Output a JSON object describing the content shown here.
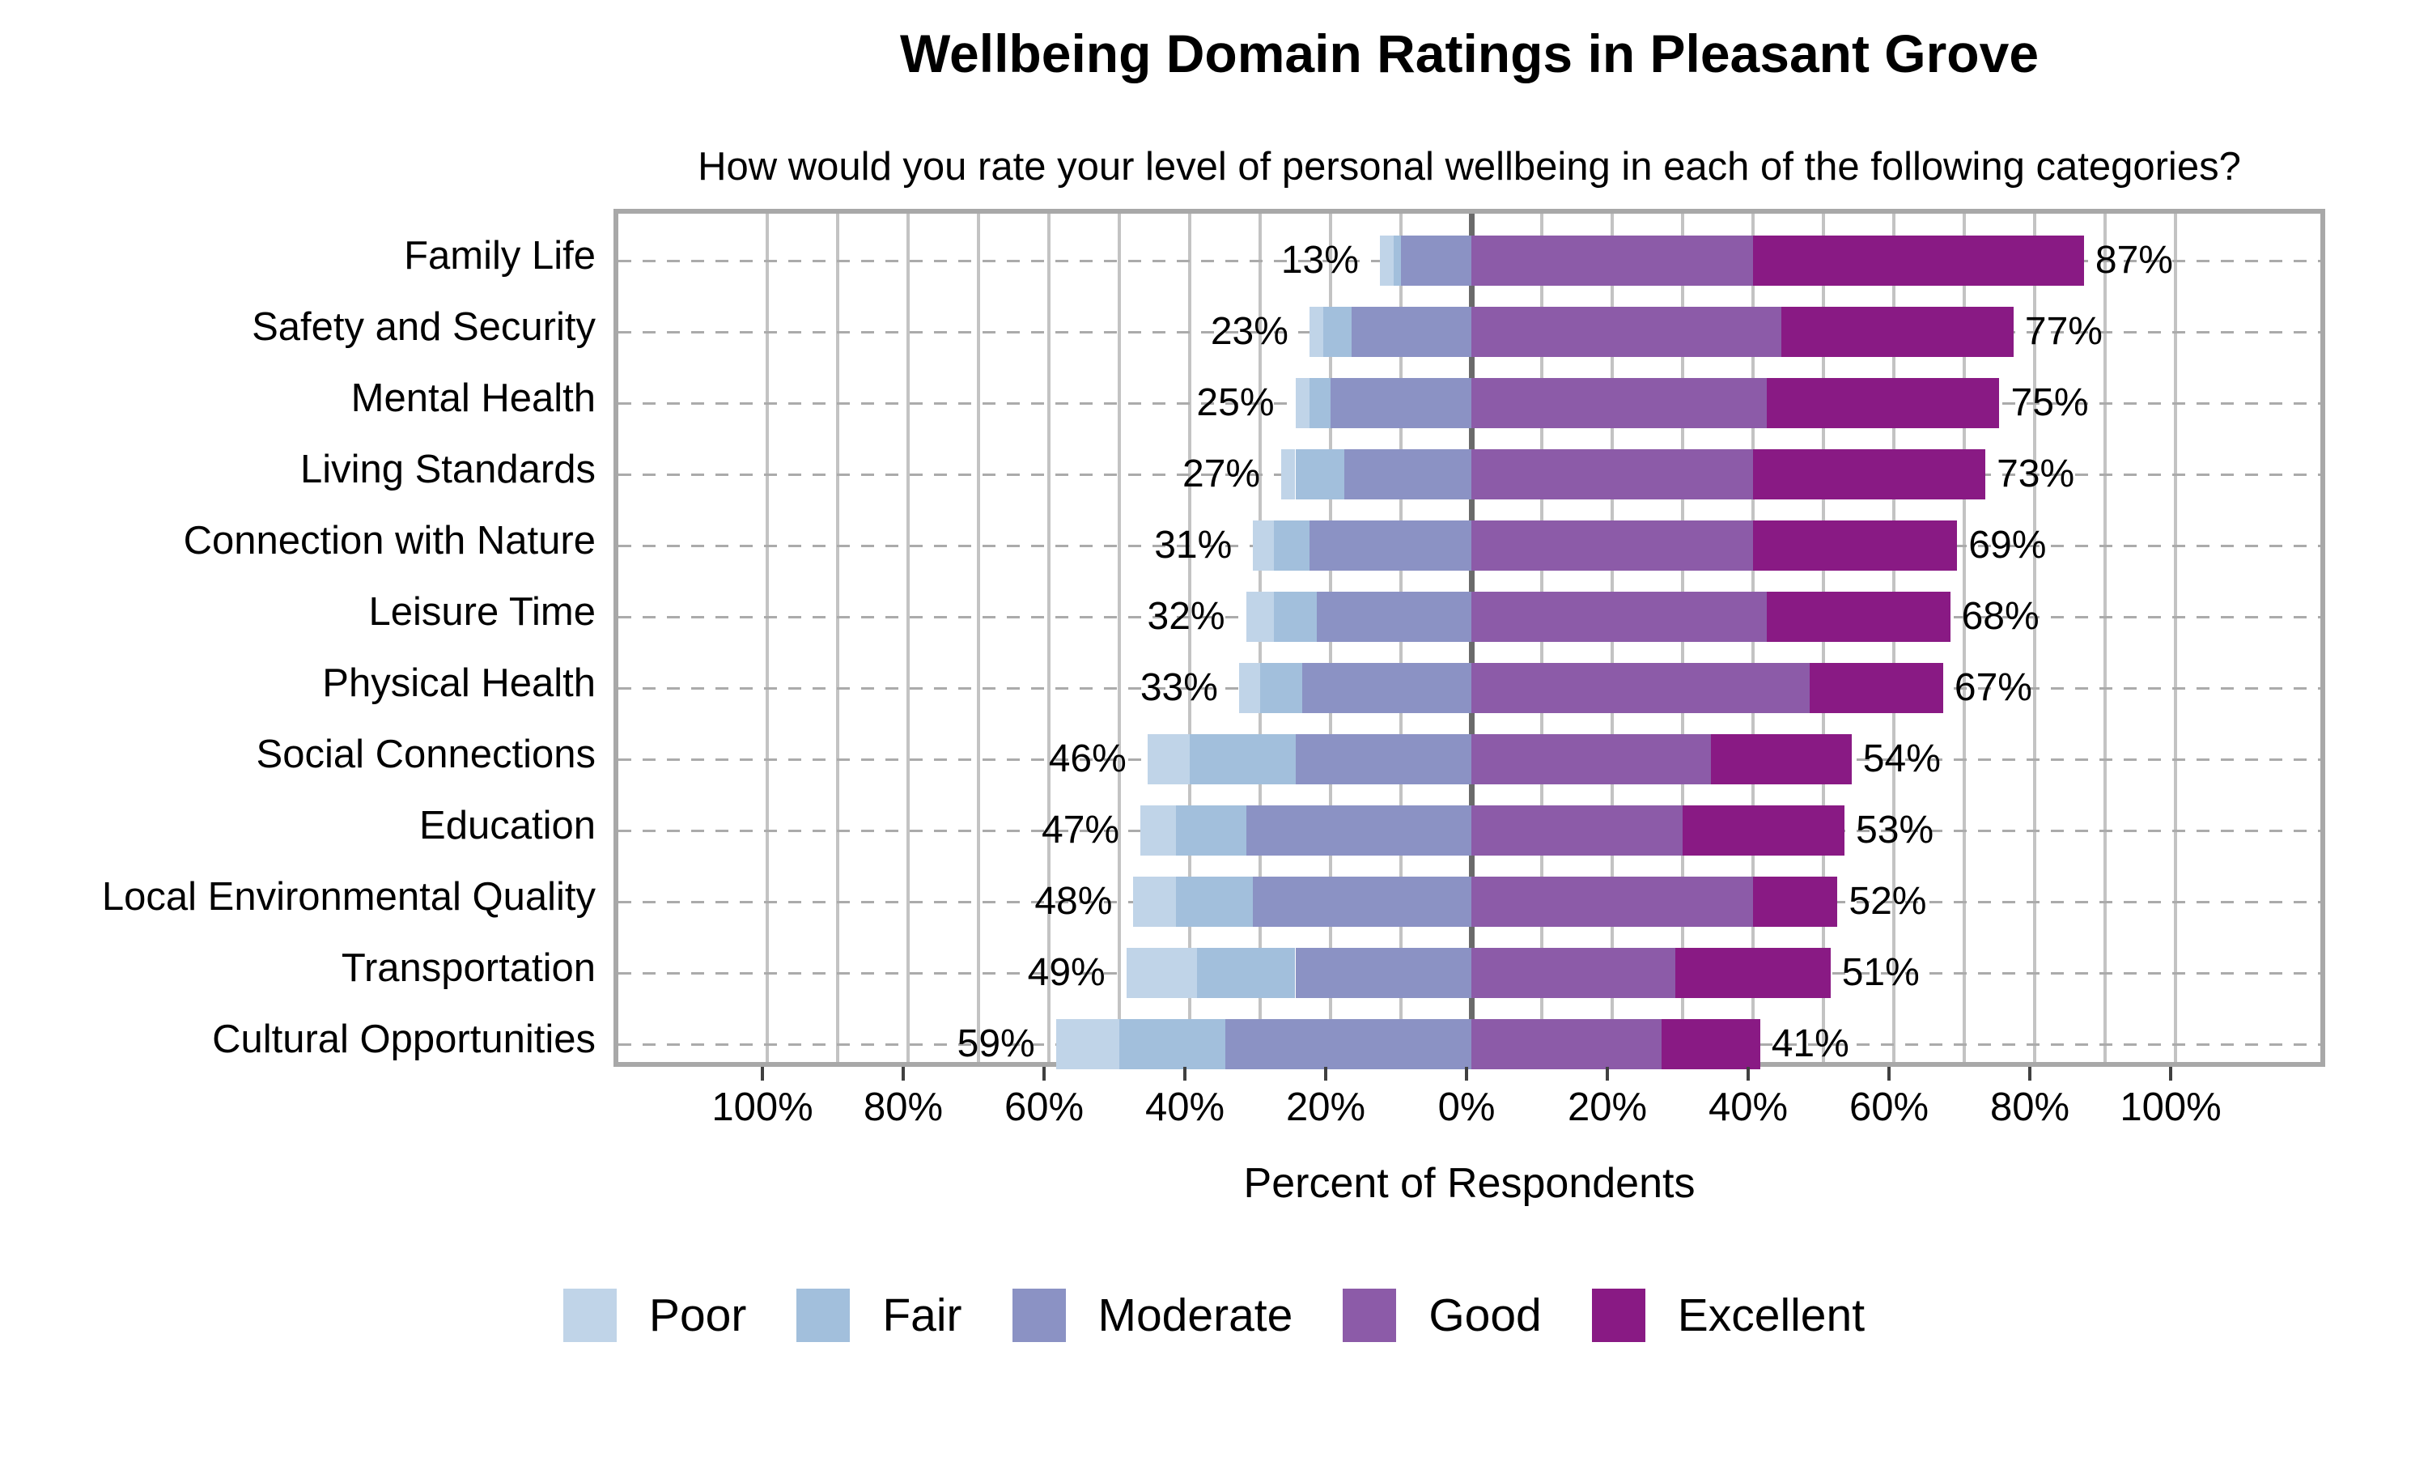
{
  "title": "Wellbeing Domain Ratings in Pleasant Grove",
  "subtitle": "How would you rate your level of personal wellbeing in each of the following categories?",
  "chart_data": {
    "type": "bar",
    "variant": "diverging-stacked-horizontal-likert",
    "title": "Wellbeing Domain Ratings in Pleasant Grove",
    "subtitle": "How would you rate your level of personal wellbeing in each of the following categories?",
    "xlabel": "Percent of Respondents",
    "xlim": [
      -121,
      122
    ],
    "x_tick_values": [
      -100,
      -80,
      -60,
      -40,
      -20,
      0,
      20,
      40,
      60,
      80,
      100
    ],
    "x_tick_labels": [
      "100%",
      "80%",
      "60%",
      "40%",
      "20%",
      "0%",
      "20%",
      "40%",
      "60%",
      "80%",
      "100%"
    ],
    "grid": "vertical solid light-gray every 10%, darker solid line at 0%, dashed horizontal guide per row",
    "legend_position": "bottom",
    "negative_side_series": [
      "Poor",
      "Fair",
      "Moderate"
    ],
    "positive_side_series": [
      "Good",
      "Excellent"
    ],
    "legend": [
      {
        "name": "Poor",
        "color": "#c0d4e8"
      },
      {
        "name": "Fair",
        "color": "#a2bfdc"
      },
      {
        "name": "Moderate",
        "color": "#8b92c4"
      },
      {
        "name": "Good",
        "color": "#8c5ba8"
      },
      {
        "name": "Excellent",
        "color": "#891a84"
      }
    ],
    "categories": [
      {
        "label": "Family Life",
        "poor": 2,
        "fair": 1,
        "moderate": 10,
        "good": 40,
        "excellent": 47,
        "left_label": "13%",
        "right_label": "87%"
      },
      {
        "label": "Safety and Security",
        "poor": 2,
        "fair": 4,
        "moderate": 17,
        "good": 44,
        "excellent": 33,
        "left_label": "23%",
        "right_label": "77%"
      },
      {
        "label": "Mental Health",
        "poor": 2,
        "fair": 3,
        "moderate": 20,
        "good": 42,
        "excellent": 33,
        "left_label": "25%",
        "right_label": "75%"
      },
      {
        "label": "Living Standards",
        "poor": 2,
        "fair": 7,
        "moderate": 18,
        "good": 40,
        "excellent": 33,
        "left_label": "27%",
        "right_label": "73%"
      },
      {
        "label": "Connection with Nature",
        "poor": 3,
        "fair": 5,
        "moderate": 23,
        "good": 40,
        "excellent": 29,
        "left_label": "31%",
        "right_label": "69%"
      },
      {
        "label": "Leisure Time",
        "poor": 4,
        "fair": 6,
        "moderate": 22,
        "good": 42,
        "excellent": 26,
        "left_label": "32%",
        "right_label": "68%"
      },
      {
        "label": "Physical Health",
        "poor": 3,
        "fair": 6,
        "moderate": 24,
        "good": 48,
        "excellent": 19,
        "left_label": "33%",
        "right_label": "67%"
      },
      {
        "label": "Social Connections",
        "poor": 6,
        "fair": 15,
        "moderate": 25,
        "good": 34,
        "excellent": 20,
        "left_label": "46%",
        "right_label": "54%"
      },
      {
        "label": "Education",
        "poor": 5,
        "fair": 10,
        "moderate": 32,
        "good": 30,
        "excellent": 23,
        "left_label": "47%",
        "right_label": "53%"
      },
      {
        "label": "Local Environmental Quality",
        "poor": 6,
        "fair": 11,
        "moderate": 31,
        "good": 40,
        "excellent": 12,
        "left_label": "48%",
        "right_label": "52%"
      },
      {
        "label": "Transportation",
        "poor": 10,
        "fair": 14,
        "moderate": 25,
        "good": 29,
        "excellent": 22,
        "left_label": "49%",
        "right_label": "51%"
      },
      {
        "label": "Cultural Opportunities",
        "poor": 9,
        "fair": 15,
        "moderate": 35,
        "good": 27,
        "excellent": 14,
        "left_label": "59%",
        "right_label": "41%"
      }
    ]
  }
}
